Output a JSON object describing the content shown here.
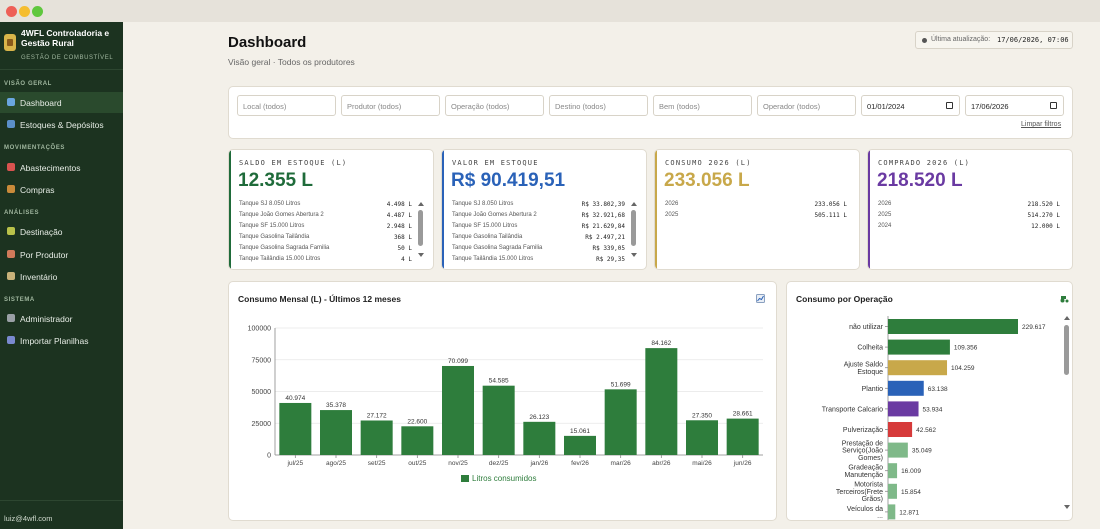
{
  "window": {
    "dot_colors": [
      "#ee5f57",
      "#f5bd2f",
      "#5fc73d"
    ]
  },
  "sidebar": {
    "brand_name": "4WFL Controladoria e Gestão Rural",
    "brand_sub": "GESTÃO DE COMBUSTÍVEL",
    "sections": {
      "visao": "VISÃO GERAL",
      "mov": "MOVIMENTAÇÕES",
      "analises": "ANÁLISES",
      "sistema": "SISTEMA"
    },
    "items": [
      {
        "label": "Dashboard",
        "icon": "bar-chart-icon",
        "color": "#6aa6e0"
      },
      {
        "label": "Estoques & Depósitos",
        "icon": "book-icon",
        "color": "#5b8fc9"
      },
      {
        "label": "Abastecimentos",
        "icon": "fuel-icon",
        "color": "#d9534f"
      },
      {
        "label": "Compras",
        "icon": "box-icon",
        "color": "#c98a3a"
      },
      {
        "label": "Destinação",
        "icon": "plant-icon",
        "color": "#b9c24a"
      },
      {
        "label": "Por Produtor",
        "icon": "user-icon",
        "color": "#d07a5a"
      },
      {
        "label": "Inventário",
        "icon": "clipboard-icon",
        "color": "#c9b27a"
      },
      {
        "label": "Administrador",
        "icon": "tools-icon",
        "color": "#9aa0a6"
      },
      {
        "label": "Importar Planilhas",
        "icon": "import-icon",
        "color": "#7a8ad0"
      }
    ],
    "user": "luiz@4wfl.com"
  },
  "header": {
    "title": "Dashboard",
    "subtitle": "Visão geral · Todos os produtores",
    "update_label": "Última atualização:",
    "update_value": "17/06/2026, 07:06"
  },
  "filters": {
    "local": "Local (todos)",
    "produtor": "Produtor (todos)",
    "operacao": "Operação (todos)",
    "destino": "Destino (todos)",
    "bem": "Bem (todos)",
    "operador": "Operador (todos)",
    "date_from": "01/01/2024",
    "date_to": "17/06/2026",
    "clear": "Limpar filtros"
  },
  "kpis": {
    "saldo": {
      "label": "SALDO EM ESTOQUE (L)",
      "value": "12.355 L",
      "color": "#1f6b3a",
      "rows": [
        {
          "name": "Tanque SJ 8.050 Litros",
          "value": "4.498 L"
        },
        {
          "name": "Tanque João Gomes Abertura 2",
          "value": "4.487 L"
        },
        {
          "name": "Tanque SF 15.000 Litros",
          "value": "2.948 L"
        },
        {
          "name": "Tanque Gasolina Tailândia",
          "value": "368 L"
        },
        {
          "name": "Tanque Gasolina Sagrada Familia",
          "value": "50 L"
        },
        {
          "name": "Tanque Tailândia 15.000 Litros",
          "value": "4 L"
        }
      ]
    },
    "valor": {
      "label": "VALOR EM ESTOQUE",
      "value": "R$ 90.419,51",
      "color": "#2a62b8",
      "rows": [
        {
          "name": "Tanque SJ 8.050 Litros",
          "value": "R$ 33.802,39"
        },
        {
          "name": "Tanque João Gomes Abertura 2",
          "value": "R$ 32.921,68"
        },
        {
          "name": "Tanque SF 15.000 Litros",
          "value": "R$ 21.629,84"
        },
        {
          "name": "Tanque Gasolina Tailândia",
          "value": "R$ 2.497,21"
        },
        {
          "name": "Tanque Gasolina Sagrada Familia",
          "value": "R$ 339,05"
        },
        {
          "name": "Tanque Tailândia 15.000 Litros",
          "value": "R$ 29,35"
        }
      ]
    },
    "consumo": {
      "label": "CONSUMO 2026 (L)",
      "value": "233.056 L",
      "color": "#c8a84a",
      "rows": [
        {
          "name": "2026",
          "value": "233.056 L"
        },
        {
          "name": "2025",
          "value": "505.111 L"
        }
      ]
    },
    "comprado": {
      "label": "COMPRADO 2026 (L)",
      "value": "218.520 L",
      "color": "#6a3aa2",
      "rows": [
        {
          "name": "2026",
          "value": "218.520 L"
        },
        {
          "name": "2025",
          "value": "514.270 L"
        },
        {
          "name": "2024",
          "value": "12.000 L"
        }
      ]
    }
  },
  "chart_data": [
    {
      "type": "bar",
      "title": "Consumo Mensal (L) - Últimos 12 meses",
      "categories": [
        "jul/25",
        "ago/25",
        "set/25",
        "out/25",
        "nov/25",
        "dez/25",
        "jan/26",
        "fev/26",
        "mar/26",
        "abr/26",
        "mai/26",
        "jun/26"
      ],
      "series": [
        {
          "name": "Litros consumidos",
          "values": [
            40974,
            35378,
            27172,
            22600,
            70099,
            54585,
            26123,
            15061,
            51699,
            84162,
            27350,
            28661
          ],
          "color": "#2e7d3c"
        }
      ],
      "data_labels": [
        "40.974",
        "35.378",
        "27.172",
        "22.600",
        "70.099",
        "54.585",
        "26.123",
        "15.061",
        "51.699",
        "84.162",
        "27.350",
        "28.661"
      ],
      "y_ticks": [
        "0",
        "25000",
        "50000",
        "75000",
        "100000"
      ],
      "ylim": [
        0,
        100000
      ],
      "grid": true,
      "legend": "bottom"
    },
    {
      "type": "bar",
      "orientation": "horizontal",
      "title": "Consumo por Operação",
      "categories": [
        [
          "não utilizar"
        ],
        [
          "Colheita"
        ],
        [
          "Ajuste Saldo",
          "Estoque"
        ],
        [
          "Plantio"
        ],
        [
          "Transporte Calcario"
        ],
        [
          "Pulverização"
        ],
        [
          "Prestação de",
          "Serviço(João",
          "Gomes)"
        ],
        [
          "Gradeação",
          "Manutenção"
        ],
        [
          "Motorista",
          "Terceiros(Frete",
          "Grãos)"
        ],
        [
          "Veículos da",
          "..."
        ]
      ],
      "values": [
        229617,
        109356,
        104259,
        63138,
        53934,
        42562,
        35049,
        16009,
        15854,
        12871
      ],
      "data_labels": [
        "229.617",
        "109.356",
        "104.259",
        "63.138",
        "53.934",
        "42.562",
        "35.049",
        "16.009",
        "15.854",
        "12.871"
      ],
      "colors": [
        "#2e7d3c",
        "#2e7d3c",
        "#c8a84a",
        "#2a62b8",
        "#6a3aa2",
        "#d63a3a",
        "#7fb989",
        "#7fb989",
        "#7fb989",
        "#7fb989"
      ],
      "xlim": [
        0,
        229617
      ]
    }
  ]
}
